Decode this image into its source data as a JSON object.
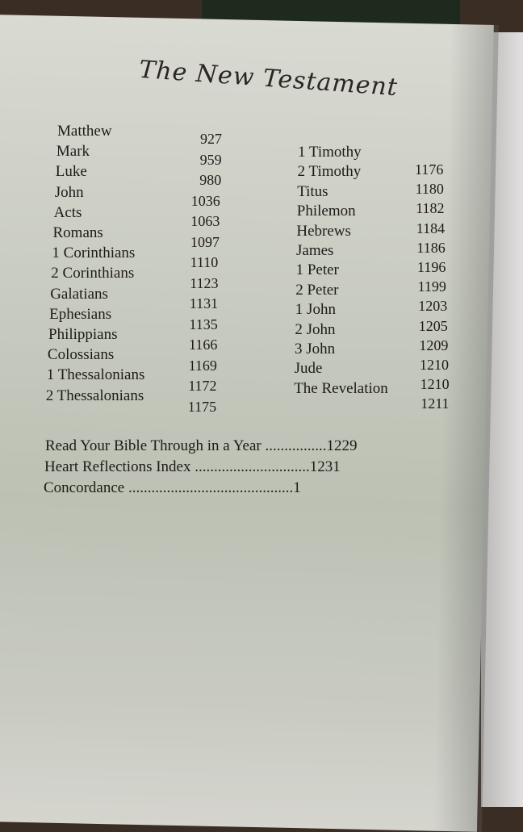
{
  "title": "The New Testament",
  "left_column": [
    {
      "book": "Matthew",
      "page": "927"
    },
    {
      "book": "Mark",
      "page": "959"
    },
    {
      "book": "Luke",
      "page": "980"
    },
    {
      "book": "John",
      "page": "1036"
    },
    {
      "book": "Acts",
      "page": "1063"
    },
    {
      "book": "Romans",
      "page": "1097"
    },
    {
      "book": "1 Corinthians",
      "page": "1110"
    },
    {
      "book": "2 Corinthians",
      "page": "1123"
    },
    {
      "book": "Galatians",
      "page": "1131"
    },
    {
      "book": "Ephesians",
      "page": "1135"
    },
    {
      "book": "Philippians",
      "page": "1166"
    },
    {
      "book": "Colossians",
      "page": "1169"
    },
    {
      "book": "1 Thessalonians",
      "page": "1172"
    },
    {
      "book": "2 Thessalonians",
      "page": "1175"
    }
  ],
  "right_column": [
    {
      "book": "1 Timothy",
      "page": "1176"
    },
    {
      "book": "2 Timothy",
      "page": "1180"
    },
    {
      "book": "Titus",
      "page": "1182"
    },
    {
      "book": "Philemon",
      "page": "1184"
    },
    {
      "book": "Hebrews",
      "page": "1186"
    },
    {
      "book": "James",
      "page": "1196"
    },
    {
      "book": "1 Peter",
      "page": "1199"
    },
    {
      "book": "2 Peter",
      "page": "1203"
    },
    {
      "book": "1 John",
      "page": "1205"
    },
    {
      "book": "2 John",
      "page": "1209"
    },
    {
      "book": "3 John",
      "page": "1210"
    },
    {
      "book": "Jude",
      "page": "1210"
    },
    {
      "book": "The Revelation",
      "page": "1211"
    }
  ],
  "index": [
    {
      "text": "Read Your Bible Through in a Year ................1229"
    },
    {
      "text": "Heart Reflections Index ..............................1231"
    },
    {
      "text": "Concordance ...........................................1"
    }
  ]
}
